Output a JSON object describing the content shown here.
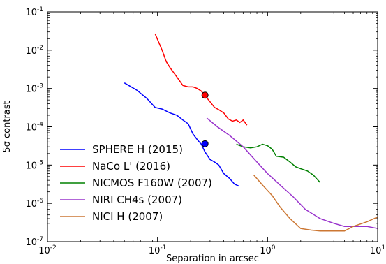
{
  "chart_data": {
    "type": "line",
    "title": "",
    "xlabel": "Separation in arcsec",
    "ylabel": "5σ contrast",
    "x_scale": "log",
    "y_scale": "log",
    "xlim": [
      0.01,
      10
    ],
    "ylim": [
      1e-07,
      0.1
    ],
    "grid": false,
    "legend_position": "lower-left",
    "x_ticks": [
      {
        "value": 0.01,
        "base": "10",
        "exp": "-2"
      },
      {
        "value": 0.1,
        "base": "10",
        "exp": "-1"
      },
      {
        "value": 1,
        "base": "10",
        "exp": "0"
      },
      {
        "value": 10,
        "base": "10",
        "exp": "1"
      }
    ],
    "y_ticks": [
      {
        "value": 1e-07,
        "base": "10",
        "exp": "-7"
      },
      {
        "value": 1e-06,
        "base": "10",
        "exp": "-6"
      },
      {
        "value": 1e-05,
        "base": "10",
        "exp": "-5"
      },
      {
        "value": 0.0001,
        "base": "10",
        "exp": "-4"
      },
      {
        "value": 0.001,
        "base": "10",
        "exp": "-3"
      },
      {
        "value": 0.01,
        "base": "10",
        "exp": "-2"
      },
      {
        "value": 0.1,
        "base": "10",
        "exp": "-1"
      }
    ],
    "series": [
      {
        "name": "SPHERE H (2015)",
        "color": "#0000ff",
        "x": [
          0.05,
          0.065,
          0.08,
          0.095,
          0.11,
          0.13,
          0.15,
          0.17,
          0.19,
          0.21,
          0.23,
          0.25,
          0.27,
          0.3,
          0.33,
          0.36,
          0.4,
          0.45,
          0.5,
          0.55
        ],
        "y": [
          0.0014,
          0.0009,
          0.00055,
          0.00032,
          0.00029,
          0.00023,
          0.0002,
          0.00015,
          0.00012,
          6.5e-05,
          4.6e-05,
          3.5e-05,
          2.2e-05,
          1.4e-05,
          1.2e-05,
          1e-05,
          6e-06,
          4.5e-06,
          3.2e-06,
          2.8e-06
        ]
      },
      {
        "name": "NaCo L' (2016)",
        "color": "#ff0000",
        "x": [
          0.095,
          0.11,
          0.12,
          0.13,
          0.15,
          0.17,
          0.19,
          0.21,
          0.23,
          0.25,
          0.27,
          0.3,
          0.33,
          0.36,
          0.4,
          0.44,
          0.48,
          0.52,
          0.56,
          0.6,
          0.65
        ],
        "y": [
          0.027,
          0.01,
          0.005,
          0.0035,
          0.002,
          0.0012,
          0.0011,
          0.0011,
          0.001,
          0.00085,
          0.00065,
          0.00045,
          0.00032,
          0.00028,
          0.00023,
          0.00016,
          0.00014,
          0.00015,
          0.00013,
          0.00015,
          0.00011
        ]
      },
      {
        "name": "NICMOS F160W (2007)",
        "color": "#008000",
        "x": [
          0.52,
          0.6,
          0.7,
          0.8,
          0.9,
          1.0,
          1.1,
          1.2,
          1.4,
          1.6,
          1.8,
          2.0,
          2.3,
          2.6,
          3.0
        ],
        "y": [
          3.5e-05,
          3e-05,
          2.8e-05,
          3e-05,
          3.5e-05,
          3.2e-05,
          2.6e-05,
          1.7e-05,
          1.6e-05,
          1.2e-05,
          9e-06,
          8e-06,
          7e-06,
          5.5e-06,
          3.5e-06
        ]
      },
      {
        "name": "NIRI CH4s (2007)",
        "color": "#9933cc",
        "x": [
          0.28,
          0.35,
          0.45,
          0.6,
          0.8,
          1.0,
          1.3,
          1.7,
          2.2,
          3.0,
          4.0,
          5.0,
          6.0,
          8.0,
          10.0
        ],
        "y": [
          0.00017,
          0.0001,
          6e-05,
          3e-05,
          1.2e-05,
          6e-06,
          3e-06,
          1.5e-06,
          7e-07,
          4e-07,
          3e-07,
          2.5e-07,
          2.5e-07,
          2.5e-07,
          2.2e-07
        ]
      },
      {
        "name": "NICI H (2007)",
        "color": "#cc7733",
        "x": [
          0.75,
          0.9,
          1.1,
          1.3,
          1.6,
          2.0,
          2.5,
          3.0,
          4.0,
          5.0,
          6.0,
          8.0,
          10.0
        ],
        "y": [
          5.5e-06,
          3e-06,
          1.6e-06,
          8e-07,
          4e-07,
          2.2e-07,
          2e-07,
          1.9e-07,
          1.9e-07,
          1.9e-07,
          2.5e-07,
          3.3e-07,
          4.4e-07
        ]
      }
    ],
    "markers": [
      {
        "x": 0.27,
        "y": 0.00067,
        "color": "#ff0000"
      },
      {
        "x": 0.27,
        "y": 3.6e-05,
        "color": "#0000ff"
      }
    ]
  }
}
